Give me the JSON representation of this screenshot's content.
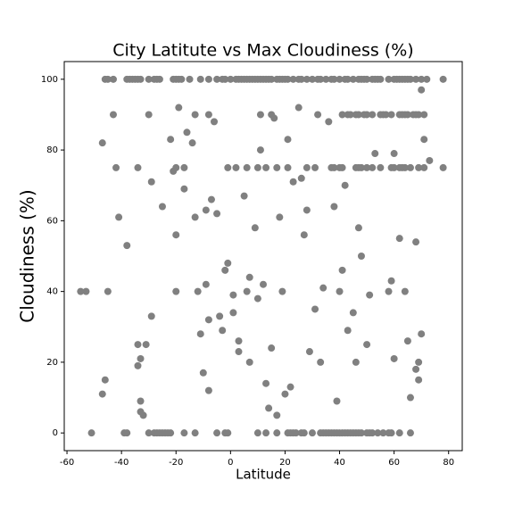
{
  "chart_data": {
    "type": "scatter",
    "title": "City Latitute vs Max Cloudiness (%)",
    "xlabel": "Latitude",
    "ylabel": "Cloudiness (%)",
    "color": "#808080",
    "xlim": [
      -61,
      85
    ],
    "ylim": [
      -5,
      105
    ],
    "xticks": [
      -60,
      -40,
      -20,
      0,
      20,
      40,
      60,
      80
    ],
    "yticks": [
      0,
      20,
      40,
      60,
      80,
      100
    ],
    "grid": false,
    "x": [
      -46,
      -45,
      -43,
      -38,
      -37,
      -36,
      -35,
      -34,
      -33,
      -30,
      -28,
      -27,
      -26,
      -21,
      -20,
      -19,
      -18,
      -15,
      -11,
      -8,
      -5,
      -3,
      -2,
      0,
      2,
      3,
      4,
      5,
      6,
      7,
      8,
      9,
      10,
      11,
      12,
      13,
      14,
      15,
      17,
      18,
      19,
      20,
      21,
      23,
      25,
      26,
      28,
      30,
      32,
      33,
      35,
      37,
      38,
      40,
      42,
      43,
      45,
      47,
      48,
      49,
      50,
      52,
      53,
      54,
      55,
      58,
      60,
      61,
      62,
      63,
      64,
      65,
      66,
      68,
      70,
      72,
      78,
      -51,
      -39,
      -38,
      -30,
      -28,
      -27,
      -26,
      -25,
      -24,
      -23,
      -22,
      -17,
      -13,
      -5,
      -2,
      -1,
      10,
      13,
      17,
      21,
      22,
      23,
      24,
      26,
      27,
      30,
      33,
      34,
      35,
      36,
      37,
      38,
      39,
      40,
      41,
      42,
      43,
      44,
      45,
      46,
      47,
      48,
      50,
      51,
      52,
      54,
      56,
      58,
      59,
      62,
      66,
      -42,
      -34,
      -20,
      -17,
      -1,
      2,
      6,
      10,
      13,
      17,
      21,
      28,
      31,
      37,
      38,
      40,
      41,
      46,
      47,
      48,
      50,
      52,
      55,
      59,
      60,
      62,
      63,
      64,
      66,
      69,
      71,
      78,
      -43,
      -30,
      -13,
      -8,
      11,
      15,
      32,
      41,
      43,
      44,
      46,
      47,
      49,
      50,
      52,
      55,
      56,
      57,
      59,
      62,
      63,
      64,
      65,
      67,
      68,
      69,
      71,
      -47,
      -45,
      -55,
      -53,
      -46,
      -47,
      -41,
      -38,
      -34,
      -34,
      -33,
      -33,
      -33,
      -32,
      -31,
      -29,
      -29,
      -25,
      -22,
      -21,
      -20,
      -20,
      -19,
      -17,
      -16,
      -14,
      -13,
      -12,
      -11,
      -10,
      -9,
      -9,
      -8,
      -8,
      -7,
      -6,
      -5,
      -4,
      -3,
      -2,
      -1,
      1,
      1,
      3,
      3,
      5,
      6,
      7,
      7,
      9,
      10,
      11,
      12,
      13,
      14,
      15,
      16,
      17,
      18,
      19,
      20,
      21,
      22,
      23,
      25,
      26,
      27,
      28,
      29,
      31,
      33,
      34,
      36,
      38,
      39,
      40,
      41,
      42,
      43,
      45,
      46,
      47,
      48,
      50,
      51,
      53,
      58,
      59,
      60,
      62,
      64,
      65,
      66,
      68,
      68,
      69,
      69,
      70,
      71,
      73,
      70,
      60
    ],
    "values": [
      100,
      100,
      100,
      100,
      100,
      100,
      100,
      100,
      100,
      100,
      100,
      100,
      100,
      100,
      100,
      100,
      100,
      100,
      100,
      100,
      100,
      100,
      100,
      100,
      100,
      100,
      100,
      100,
      100,
      100,
      100,
      100,
      100,
      100,
      100,
      100,
      100,
      100,
      100,
      100,
      100,
      100,
      100,
      100,
      100,
      100,
      100,
      100,
      100,
      100,
      100,
      100,
      100,
      100,
      100,
      100,
      100,
      100,
      100,
      100,
      100,
      100,
      100,
      100,
      100,
      100,
      100,
      100,
      100,
      100,
      100,
      100,
      100,
      100,
      100,
      100,
      100,
      0,
      0,
      0,
      0,
      0,
      0,
      0,
      0,
      0,
      0,
      0,
      0,
      0,
      0,
      0,
      0,
      0,
      0,
      0,
      0,
      0,
      0,
      0,
      0,
      0,
      0,
      0,
      0,
      0,
      0,
      0,
      0,
      0,
      0,
      0,
      0,
      0,
      0,
      0,
      0,
      0,
      0,
      0,
      0,
      0,
      0,
      0,
      0,
      0,
      0,
      0,
      75,
      75,
      75,
      75,
      75,
      75,
      75,
      75,
      75,
      75,
      75,
      75,
      75,
      75,
      75,
      75,
      75,
      75,
      75,
      75,
      75,
      75,
      75,
      75,
      75,
      75,
      75,
      75,
      75,
      75,
      75,
      75,
      90,
      90,
      90,
      90,
      90,
      90,
      90,
      90,
      90,
      90,
      90,
      90,
      90,
      90,
      90,
      90,
      90,
      90,
      90,
      90,
      90,
      90,
      90,
      90,
      90,
      90,
      90,
      82,
      40,
      40,
      40,
      15,
      11,
      61,
      53,
      25,
      19,
      21,
      9,
      6,
      5,
      25,
      71,
      33,
      64,
      83,
      74,
      56,
      40,
      92,
      69,
      85,
      82,
      61,
      40,
      28,
      17,
      63,
      42,
      32,
      12,
      66,
      88,
      62,
      33,
      29,
      46,
      48,
      39,
      34,
      26,
      23,
      67,
      40,
      20,
      44,
      58,
      38,
      80,
      42,
      14,
      7,
      24,
      89,
      5,
      61,
      40,
      11,
      83,
      13,
      71,
      92,
      72,
      56,
      63,
      23,
      35,
      20,
      41,
      88,
      64,
      9,
      40,
      46,
      70,
      29,
      34,
      20,
      58,
      50,
      25,
      39,
      79,
      40,
      43,
      21,
      55,
      40,
      26,
      10,
      54,
      18,
      15,
      20,
      28,
      83,
      77,
      97,
      79
    ]
  }
}
